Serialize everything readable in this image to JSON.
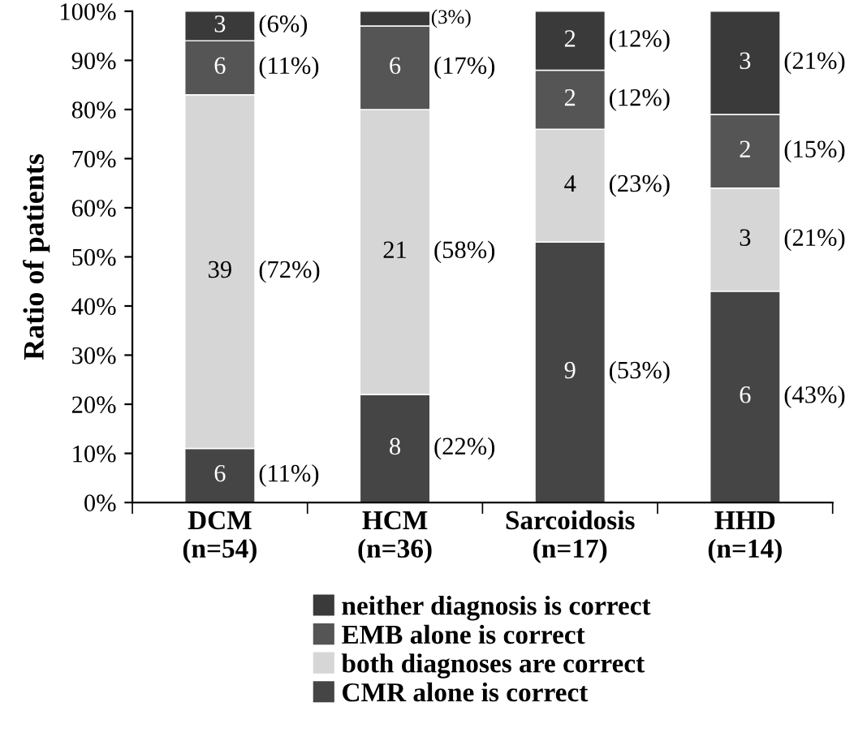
{
  "chart_data": {
    "type": "bar",
    "stacked": true,
    "ylabel": "Ratio of patients",
    "categories": [
      "DCM\n(n=54)",
      "HCM\n(n=36)",
      "Sarcoidosis\n(n=17)",
      "HHD\n(n=14)"
    ],
    "series": [
      {
        "name": "CMR alone is correct",
        "color": "#454545",
        "values": [
          11,
          22,
          53,
          43
        ],
        "value_labels": [
          "6 (11%)",
          "8 (22%)",
          "9 (53%)",
          "6 (43%)"
        ]
      },
      {
        "name": "both diagnoses are correct",
        "color": "#d6d6d6",
        "values": [
          72,
          58,
          23,
          21
        ],
        "value_labels": [
          "39 (72%)",
          "21 (58%)",
          "4 (23%)",
          "3 (21%)"
        ]
      },
      {
        "name": "EMB alone is correct",
        "color": "#555555",
        "values": [
          11,
          17,
          12,
          15
        ],
        "value_labels": [
          "6 (11%)",
          "6 (17%)",
          "2 (12%)",
          "2 (15%)"
        ]
      },
      {
        "name": "neither diagnosis is correct",
        "color": "#3a3a3a",
        "values": [
          6,
          3,
          12,
          21
        ],
        "value_labels": [
          "3 (6%)",
          null,
          "2 (12%)",
          "3 (21%)"
        ]
      }
    ],
    "annotations": [
      {
        "text": "(3%)",
        "x": "HCM\n(n=36)",
        "y": 98.5
      }
    ],
    "ylim": [
      0,
      100
    ],
    "yticks": [
      {
        "value": 0,
        "label": "0%"
      },
      {
        "value": 10,
        "label": "10%"
      },
      {
        "value": 20,
        "label": "20%"
      },
      {
        "value": 30,
        "label": "30%"
      },
      {
        "value": 40,
        "label": "40%"
      },
      {
        "value": 50,
        "label": "50%"
      },
      {
        "value": 60,
        "label": "60%"
      },
      {
        "value": 70,
        "label": "70%"
      },
      {
        "value": 80,
        "label": "80%"
      },
      {
        "value": 90,
        "label": "90%"
      },
      {
        "value": 100,
        "label": "100%"
      }
    ],
    "grid": false,
    "legend": "bottom"
  }
}
